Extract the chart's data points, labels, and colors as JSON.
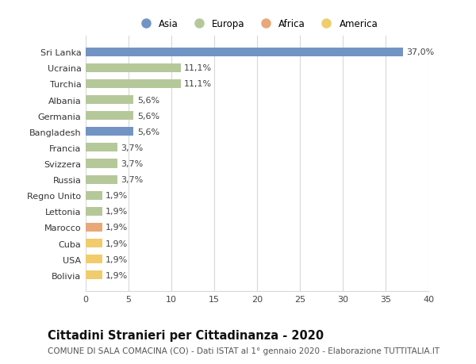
{
  "categories": [
    "Sri Lanka",
    "Ucraina",
    "Turchia",
    "Albania",
    "Germania",
    "Bangladesh",
    "Francia",
    "Svizzera",
    "Russia",
    "Regno Unito",
    "Lettonia",
    "Marocco",
    "Cuba",
    "USA",
    "Bolivia"
  ],
  "values": [
    37.0,
    11.1,
    11.1,
    5.6,
    5.6,
    5.6,
    3.7,
    3.7,
    3.7,
    1.9,
    1.9,
    1.9,
    1.9,
    1.9,
    1.9
  ],
  "labels": [
    "37,0%",
    "11,1%",
    "11,1%",
    "5,6%",
    "5,6%",
    "5,6%",
    "3,7%",
    "3,7%",
    "3,7%",
    "1,9%",
    "1,9%",
    "1,9%",
    "1,9%",
    "1,9%",
    "1,9%"
  ],
  "colors": [
    "#7294c4",
    "#b5c89a",
    "#b5c89a",
    "#b5c89a",
    "#b5c89a",
    "#7294c4",
    "#b5c89a",
    "#b5c89a",
    "#b5c89a",
    "#b5c89a",
    "#b5c89a",
    "#e8a878",
    "#f0cc6c",
    "#f0cc6c",
    "#f0cc6c"
  ],
  "legend_labels": [
    "Asia",
    "Europa",
    "Africa",
    "America"
  ],
  "legend_colors": [
    "#7294c4",
    "#b5c89a",
    "#e8a878",
    "#f0cc6c"
  ],
  "title": "Cittadini Stranieri per Cittadinanza - 2020",
  "subtitle": "COMUNE DI SALA COMACINA (CO) - Dati ISTAT al 1° gennaio 2020 - Elaborazione TUTTITALIA.IT",
  "xlim": [
    0,
    40
  ],
  "xticks": [
    0,
    5,
    10,
    15,
    20,
    25,
    30,
    35,
    40
  ],
  "bg_color": "#ffffff",
  "grid_color": "#d8d8d8",
  "bar_height": 0.55,
  "label_fontsize": 8,
  "tick_fontsize": 8,
  "title_fontsize": 10.5,
  "subtitle_fontsize": 7.5
}
